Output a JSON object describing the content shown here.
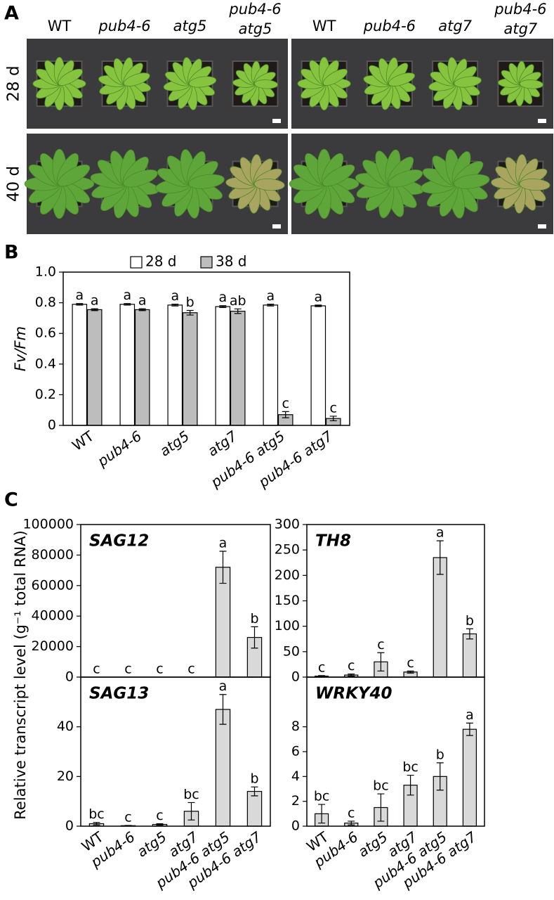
{
  "panel_labels": [
    "A",
    "B",
    "C"
  ],
  "photo_panel": {
    "groups": [
      {
        "labels": [
          [
            "WT"
          ],
          [
            "pub4-6"
          ],
          [
            "atg5"
          ],
          [
            "pub4-6",
            "atg5"
          ]
        ],
        "italic": [
          false,
          true,
          true,
          true
        ]
      },
      {
        "labels": [
          [
            "WT"
          ],
          [
            "pub4-6"
          ],
          [
            "atg7"
          ],
          [
            "pub4-6",
            "atg7"
          ]
        ],
        "italic": [
          false,
          true,
          true,
          true
        ]
      }
    ],
    "rows": [
      "28 d",
      "40 d"
    ]
  },
  "panel_c": {
    "ylabel": "Relative transcript level (g⁻¹ total RNA)"
  },
  "chart_data": [
    {
      "type": "bar",
      "ylabel": "Fv/Fm",
      "categories": [
        "WT",
        "pub4-6",
        "atg5",
        "atg7",
        "pub4-6 atg5",
        "pub4-6 atg7"
      ],
      "category_italic": [
        false,
        true,
        true,
        true,
        true,
        true
      ],
      "legend": "top",
      "series": [
        {
          "name": "28 d",
          "color": "#ffffff",
          "values": [
            0.79,
            0.79,
            0.785,
            0.775,
            0.785,
            0.78
          ],
          "errors": [
            0.005,
            0.005,
            0.006,
            0.006,
            0.006,
            0.005
          ],
          "letters": [
            "a",
            "a",
            "a",
            "a",
            "a",
            "a"
          ]
        },
        {
          "name": "38 d",
          "color": "#bdbdbd",
          "values": [
            0.755,
            0.755,
            0.735,
            0.745,
            0.07,
            0.045
          ],
          "errors": [
            0.006,
            0.006,
            0.015,
            0.015,
            0.02,
            0.015
          ],
          "letters": [
            "a",
            "a",
            "b",
            "ab",
            "c",
            "c"
          ]
        }
      ],
      "ylim": [
        0,
        1
      ],
      "yticks": [
        0,
        0.2,
        0.4,
        0.6,
        0.8,
        {
          "value": 1,
          "label": "1.0"
        }
      ]
    },
    {
      "type": "bar",
      "title": "SAG12",
      "series": [
        {
          "color": "#d9d9d9",
          "values": [
            0,
            0,
            0,
            0,
            72000,
            26000
          ],
          "errors": [
            0,
            0,
            0,
            0,
            10500,
            7000
          ],
          "letters": [
            "c",
            "c",
            "c",
            "c",
            "a",
            "b"
          ]
        }
      ],
      "ylim": [
        0,
        100000
      ],
      "yticks": [
        0,
        20000,
        40000,
        60000,
        80000,
        100000
      ]
    },
    {
      "type": "bar",
      "title": "TH8",
      "series": [
        {
          "color": "#d9d9d9",
          "values": [
            2,
            4,
            30,
            10,
            235,
            85
          ],
          "errors": [
            1,
            2,
            18,
            2,
            33,
            10
          ],
          "letters": [
            "c",
            "c",
            "c",
            "c",
            "a",
            "b"
          ]
        }
      ],
      "ylim": [
        0,
        300
      ],
      "yticks": [
        0,
        50,
        100,
        150,
        200,
        250,
        300
      ]
    },
    {
      "type": "bar",
      "title": "SAG13",
      "categories": [
        "WT",
        "pub4-6",
        "atg5",
        "atg7",
        "pub4-6 atg5",
        "pub4-6 atg7"
      ],
      "category_italic": [
        false,
        true,
        true,
        true,
        true,
        true
      ],
      "series": [
        {
          "color": "#d9d9d9",
          "values": [
            1,
            0.2,
            0.7,
            6,
            47,
            14
          ],
          "errors": [
            0.5,
            0.1,
            0.3,
            3.5,
            6,
            1.8
          ],
          "letters": [
            "bc",
            "c",
            "c",
            "bc",
            "a",
            "b"
          ]
        }
      ],
      "ylim": [
        0,
        60
      ],
      "yticks": [
        0,
        20,
        40
      ]
    },
    {
      "type": "bar",
      "title": "WRKY40",
      "categories": [
        "WT",
        "pub4-6",
        "atg5",
        "atg7",
        "pub4-6 atg5",
        "pub4-6 atg7"
      ],
      "category_italic": [
        false,
        true,
        true,
        true,
        true,
        true
      ],
      "series": [
        {
          "color": "#d9d9d9",
          "values": [
            1,
            0.25,
            1.5,
            3.3,
            4,
            7.8
          ],
          "errors": [
            0.75,
            0.15,
            1.1,
            0.8,
            1.1,
            0.5
          ],
          "letters": [
            "bc",
            "c",
            "bc",
            "bc",
            "b",
            "a"
          ]
        }
      ],
      "ylim": [
        0,
        12
      ],
      "yticks": [
        0,
        2,
        4,
        6,
        8
      ]
    }
  ]
}
